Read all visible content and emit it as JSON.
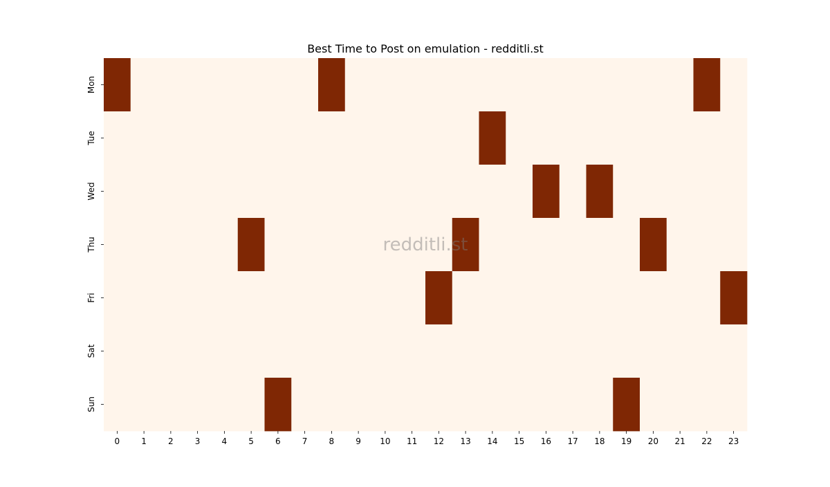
{
  "chart_data": {
    "type": "heatmap",
    "title": "Best Time to Post on emulation - redditli.st",
    "watermark": "redditli.st",
    "x_categories": [
      "0",
      "1",
      "2",
      "3",
      "4",
      "5",
      "6",
      "7",
      "8",
      "9",
      "10",
      "11",
      "12",
      "13",
      "14",
      "15",
      "16",
      "17",
      "18",
      "19",
      "20",
      "21",
      "22",
      "23"
    ],
    "y_categories": [
      "Mon",
      "Tue",
      "Wed",
      "Thu",
      "Fri",
      "Sat",
      "Sun"
    ],
    "values": [
      [
        1,
        0,
        0,
        0,
        0,
        0,
        0,
        0,
        1,
        0,
        0,
        0,
        0,
        0,
        0,
        0,
        0,
        0,
        0,
        0,
        0,
        0,
        1,
        0
      ],
      [
        0,
        0,
        0,
        0,
        0,
        0,
        0,
        0,
        0,
        0,
        0,
        0,
        0,
        0,
        1,
        0,
        0,
        0,
        0,
        0,
        0,
        0,
        0,
        0
      ],
      [
        0,
        0,
        0,
        0,
        0,
        0,
        0,
        0,
        0,
        0,
        0,
        0,
        0,
        0,
        0,
        0,
        1,
        0,
        1,
        0,
        0,
        0,
        0,
        0
      ],
      [
        0,
        0,
        0,
        0,
        0,
        1,
        0,
        0,
        0,
        0,
        0,
        0,
        0,
        1,
        0,
        0,
        0,
        0,
        0,
        0,
        1,
        0,
        0,
        0
      ],
      [
        0,
        0,
        0,
        0,
        0,
        0,
        0,
        0,
        0,
        0,
        0,
        0,
        1,
        0,
        0,
        0,
        0,
        0,
        0,
        0,
        0,
        0,
        0,
        1
      ],
      [
        0,
        0,
        0,
        0,
        0,
        0,
        0,
        0,
        0,
        0,
        0,
        0,
        0,
        0,
        0,
        0,
        0,
        0,
        0,
        0,
        0,
        0,
        0,
        0
      ],
      [
        0,
        0,
        0,
        0,
        0,
        0,
        1,
        0,
        0,
        0,
        0,
        0,
        0,
        0,
        0,
        0,
        0,
        0,
        0,
        1,
        0,
        0,
        0,
        0
      ]
    ],
    "colors": {
      "low": "#fff5eb",
      "high": "#7f2704"
    },
    "grid": false,
    "legend": "none"
  }
}
